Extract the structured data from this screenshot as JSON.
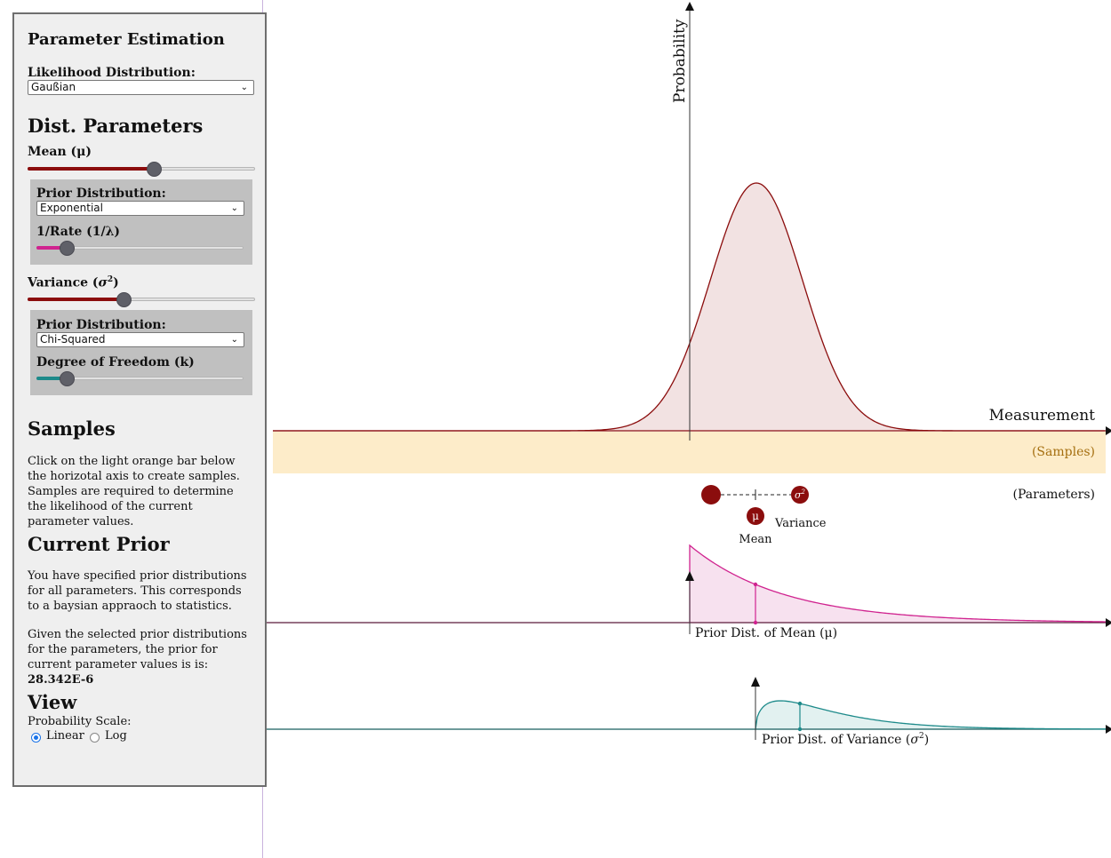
{
  "panel": {
    "title": "Parameter Estimation",
    "likelihood_label": "Likelihood Distribution:",
    "likelihood_value": "Gaußian",
    "dist_params_heading": "Dist. Parameters",
    "mean": {
      "label": "Mean (μ)",
      "slider_fraction": 0.56,
      "prior_label": "Prior Distribution:",
      "prior_value": "Exponential",
      "sub_label": "1/Rate (1/λ)",
      "sub_slider_fraction": 0.12
    },
    "variance": {
      "label_text": "Variance (",
      "label_sym": "σ",
      "label_sup": "2",
      "label_close": ")",
      "slider_fraction": 0.42,
      "prior_label": "Prior Distribution:",
      "prior_value": "Chi-Squared",
      "sub_label": "Degree of Freedom (k)",
      "sub_slider_fraction": 0.12
    },
    "samples_heading": "Samples",
    "samples_text": "Click on the light orange bar below the horizotal axis to create samples. Samples are required to determine the likelihood of the current parameter values.",
    "prior_heading": "Current Prior",
    "prior_text1": "You have specified prior distributions for all parameters. This corresponds to a baysian appraoch to statistics.",
    "prior_text2": "Given the selected prior distributions for the parameters, the prior for current parameter values is is:",
    "prior_value": "28.342E-6",
    "view_heading": "View",
    "scale_label": "Probability Scale:",
    "scale_options": [
      "Linear",
      "Log"
    ],
    "scale_selected": "Linear"
  },
  "plot": {
    "y_label": "Probability",
    "x_label": "Measurement",
    "samples_label": "(Samples)",
    "params_label": "(Parameters)",
    "mu_symbol": "μ",
    "sigma_symbol": "σ",
    "sigma_sup": "2",
    "mean_label": "Mean",
    "variance_label": "Variance",
    "prior_mean_label": "Prior Dist. of Mean (μ)",
    "prior_var_label_text": "Prior Dist. of Variance (",
    "prior_var_label_close": ")"
  },
  "colors": {
    "likelihood": "#8b0d0d",
    "likelihood_fill": "#f2e2e2",
    "samples_bar": "#fdecc9",
    "samples_text": "#a56f10",
    "mean_prior": "#d0238f",
    "mean_prior_fill": "#f7e1ef",
    "var_prior": "#1d8a8a",
    "var_prior_fill": "#e2f1f0"
  }
}
